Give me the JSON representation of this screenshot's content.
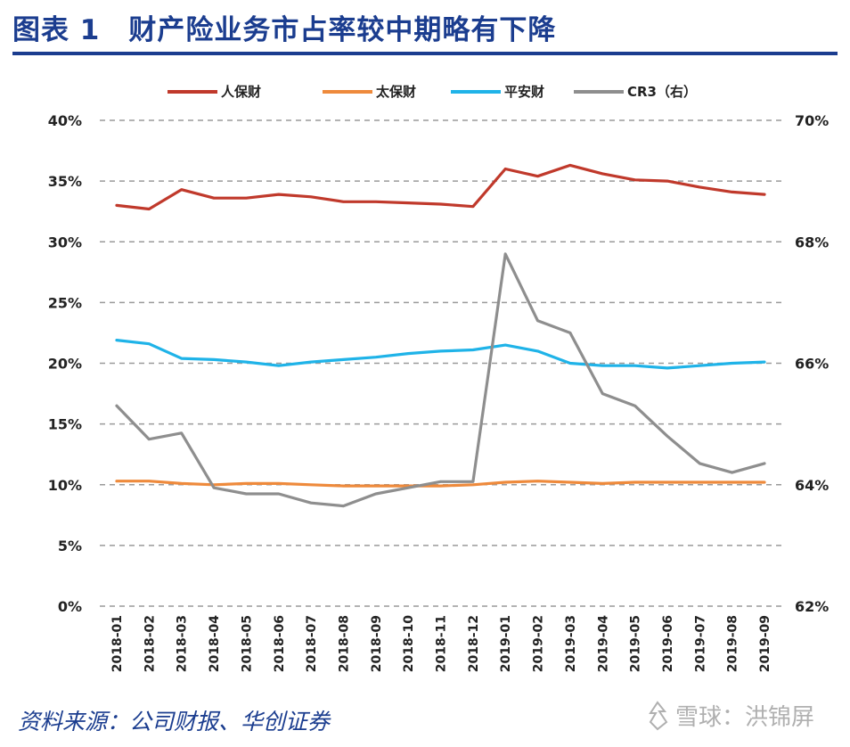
{
  "figure": {
    "title": "图表 1　财产险业务市占率较中期略有下降",
    "source": "资料来源：公司财报、华创证券",
    "watermark_text": "雪球：洪锦屏"
  },
  "chart_data": {
    "type": "line",
    "categories": [
      "2018-01",
      "2018-02",
      "2018-03",
      "2018-04",
      "2018-05",
      "2018-06",
      "2018-07",
      "2018-08",
      "2018-09",
      "2018-10",
      "2018-11",
      "2018-12",
      "2019-01",
      "2019-02",
      "2019-03",
      "2019-04",
      "2019-05",
      "2019-06",
      "2019-07",
      "2019-08",
      "2019-09"
    ],
    "left_axis": {
      "ylim": [
        0,
        40
      ],
      "ticks": [
        "0%",
        "5%",
        "10%",
        "15%",
        "20%",
        "25%",
        "30%",
        "35%",
        "40%"
      ]
    },
    "right_axis": {
      "ylim": [
        62,
        70
      ],
      "ticks": [
        "62%",
        "64%",
        "66%",
        "68%",
        "70%"
      ]
    },
    "grid": true,
    "legend_position": "top",
    "series": [
      {
        "name": "人保财",
        "axis": "left",
        "color": "#c0392b",
        "values": [
          33.0,
          32.7,
          34.3,
          33.6,
          33.6,
          33.9,
          33.7,
          33.3,
          33.3,
          33.2,
          33.1,
          32.9,
          36.0,
          35.4,
          36.3,
          35.6,
          35.1,
          35.0,
          34.5,
          34.1,
          33.9
        ]
      },
      {
        "name": "太保财",
        "axis": "left",
        "color": "#ee8a3c",
        "values": [
          10.3,
          10.3,
          10.1,
          10.0,
          10.1,
          10.1,
          10.0,
          9.9,
          9.9,
          9.9,
          9.9,
          10.0,
          10.2,
          10.3,
          10.2,
          10.1,
          10.2,
          10.2,
          10.2,
          10.2,
          10.2
        ]
      },
      {
        "name": "平安财",
        "axis": "left",
        "color": "#1fb3e8",
        "values": [
          21.9,
          21.6,
          20.4,
          20.3,
          20.1,
          19.8,
          20.1,
          20.3,
          20.5,
          20.8,
          21.0,
          21.1,
          21.5,
          21.0,
          20.0,
          19.8,
          19.8,
          19.6,
          19.8,
          20.0,
          20.1
        ]
      },
      {
        "name": "CR3（右）",
        "axis": "right",
        "color": "#8e8e8e",
        "values": [
          65.3,
          64.75,
          64.85,
          63.95,
          63.85,
          63.85,
          63.7,
          63.65,
          63.85,
          63.95,
          64.05,
          64.05,
          67.8,
          66.7,
          66.5,
          65.5,
          65.3,
          64.8,
          64.35,
          64.2,
          64.35
        ]
      }
    ]
  }
}
